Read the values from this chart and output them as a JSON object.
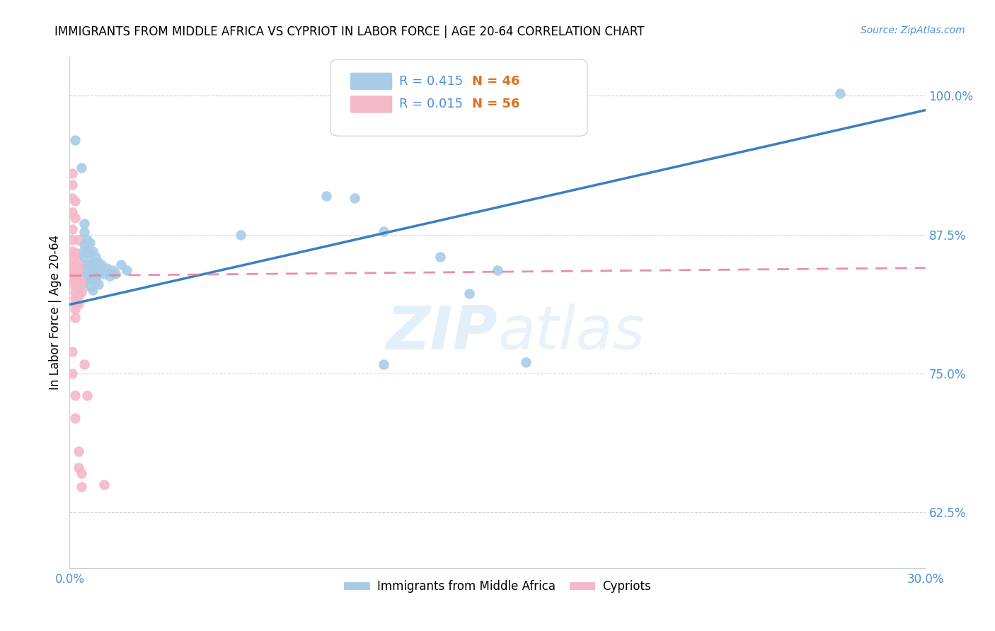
{
  "title": "IMMIGRANTS FROM MIDDLE AFRICA VS CYPRIOT IN LABOR FORCE | AGE 20-64 CORRELATION CHART",
  "source": "Source: ZipAtlas.com",
  "ylabel": "In Labor Force | Age 20-64",
  "watermark_zip": "ZIP",
  "watermark_atlas": "atlas",
  "xlim": [
    0.0,
    0.3
  ],
  "ylim": [
    0.575,
    1.035
  ],
  "xticks": [
    0.0,
    0.05,
    0.1,
    0.15,
    0.2,
    0.25,
    0.3
  ],
  "xticklabels": [
    "0.0%",
    "",
    "",
    "",
    "",
    "",
    "30.0%"
  ],
  "yticks_right": [
    0.625,
    0.75,
    0.875,
    1.0
  ],
  "ytick_labels_right": [
    "62.5%",
    "75.0%",
    "87.5%",
    "100.0%"
  ],
  "blue_color": "#a8cce8",
  "pink_color": "#f4b8c8",
  "blue_line_color": "#3a7fc1",
  "pink_line_color": "#e87a9a",
  "tick_color": "#4a90d9",
  "legend_R_color": "#4a90d9",
  "legend_N_color": "#e07020",
  "blue_scatter": [
    [
      0.002,
      0.96
    ],
    [
      0.004,
      0.935
    ],
    [
      0.005,
      0.885
    ],
    [
      0.005,
      0.877
    ],
    [
      0.005,
      0.866
    ],
    [
      0.005,
      0.86
    ],
    [
      0.005,
      0.855
    ],
    [
      0.006,
      0.87
    ],
    [
      0.006,
      0.858
    ],
    [
      0.006,
      0.848
    ],
    [
      0.006,
      0.84
    ],
    [
      0.007,
      0.868
    ],
    [
      0.007,
      0.858
    ],
    [
      0.007,
      0.848
    ],
    [
      0.007,
      0.84
    ],
    [
      0.007,
      0.835
    ],
    [
      0.007,
      0.828
    ],
    [
      0.008,
      0.86
    ],
    [
      0.008,
      0.85
    ],
    [
      0.008,
      0.842
    ],
    [
      0.008,
      0.835
    ],
    [
      0.008,
      0.825
    ],
    [
      0.009,
      0.855
    ],
    [
      0.009,
      0.845
    ],
    [
      0.009,
      0.835
    ],
    [
      0.01,
      0.85
    ],
    [
      0.01,
      0.84
    ],
    [
      0.01,
      0.83
    ],
    [
      0.011,
      0.848
    ],
    [
      0.012,
      0.84
    ],
    [
      0.013,
      0.845
    ],
    [
      0.014,
      0.838
    ],
    [
      0.015,
      0.843
    ],
    [
      0.016,
      0.84
    ],
    [
      0.018,
      0.848
    ],
    [
      0.02,
      0.843
    ],
    [
      0.06,
      0.875
    ],
    [
      0.09,
      0.91
    ],
    [
      0.1,
      0.908
    ],
    [
      0.11,
      0.878
    ],
    [
      0.13,
      0.855
    ],
    [
      0.14,
      0.822
    ],
    [
      0.15,
      0.843
    ],
    [
      0.16,
      0.76
    ],
    [
      0.27,
      1.002
    ],
    [
      0.11,
      0.758
    ]
  ],
  "pink_scatter": [
    [
      0.001,
      0.908
    ],
    [
      0.001,
      0.895
    ],
    [
      0.001,
      0.88
    ],
    [
      0.001,
      0.87
    ],
    [
      0.001,
      0.86
    ],
    [
      0.001,
      0.853
    ],
    [
      0.001,
      0.848
    ],
    [
      0.001,
      0.843
    ],
    [
      0.001,
      0.838
    ],
    [
      0.001,
      0.833
    ],
    [
      0.002,
      0.858
    ],
    [
      0.002,
      0.848
    ],
    [
      0.002,
      0.843
    ],
    [
      0.002,
      0.838
    ],
    [
      0.002,
      0.833
    ],
    [
      0.002,
      0.828
    ],
    [
      0.002,
      0.823
    ],
    [
      0.002,
      0.818
    ],
    [
      0.002,
      0.813
    ],
    [
      0.002,
      0.808
    ],
    [
      0.002,
      0.8
    ],
    [
      0.003,
      0.85
    ],
    [
      0.003,
      0.843
    ],
    [
      0.003,
      0.838
    ],
    [
      0.003,
      0.833
    ],
    [
      0.003,
      0.828
    ],
    [
      0.003,
      0.82
    ],
    [
      0.003,
      0.813
    ],
    [
      0.004,
      0.845
    ],
    [
      0.004,
      0.84
    ],
    [
      0.004,
      0.835
    ],
    [
      0.004,
      0.83
    ],
    [
      0.004,
      0.823
    ],
    [
      0.005,
      0.84
    ],
    [
      0.005,
      0.832
    ],
    [
      0.006,
      0.838
    ],
    [
      0.007,
      0.835
    ],
    [
      0.008,
      0.84
    ],
    [
      0.009,
      0.833
    ],
    [
      0.001,
      0.77
    ],
    [
      0.001,
      0.75
    ],
    [
      0.002,
      0.73
    ],
    [
      0.002,
      0.71
    ],
    [
      0.003,
      0.68
    ],
    [
      0.003,
      0.665
    ],
    [
      0.004,
      0.66
    ],
    [
      0.004,
      0.648
    ],
    [
      0.005,
      0.758
    ],
    [
      0.006,
      0.73
    ],
    [
      0.001,
      0.92
    ],
    [
      0.001,
      0.93
    ],
    [
      0.002,
      0.905
    ],
    [
      0.002,
      0.89
    ],
    [
      0.003,
      0.87
    ],
    [
      0.003,
      0.858
    ],
    [
      0.012,
      0.65
    ]
  ],
  "blue_fit_x": [
    0.0,
    0.3
  ],
  "blue_fit_y": [
    0.812,
    0.987
  ],
  "pink_fit_x": [
    0.0,
    0.3
  ],
  "pink_fit_y": [
    0.838,
    0.845
  ]
}
